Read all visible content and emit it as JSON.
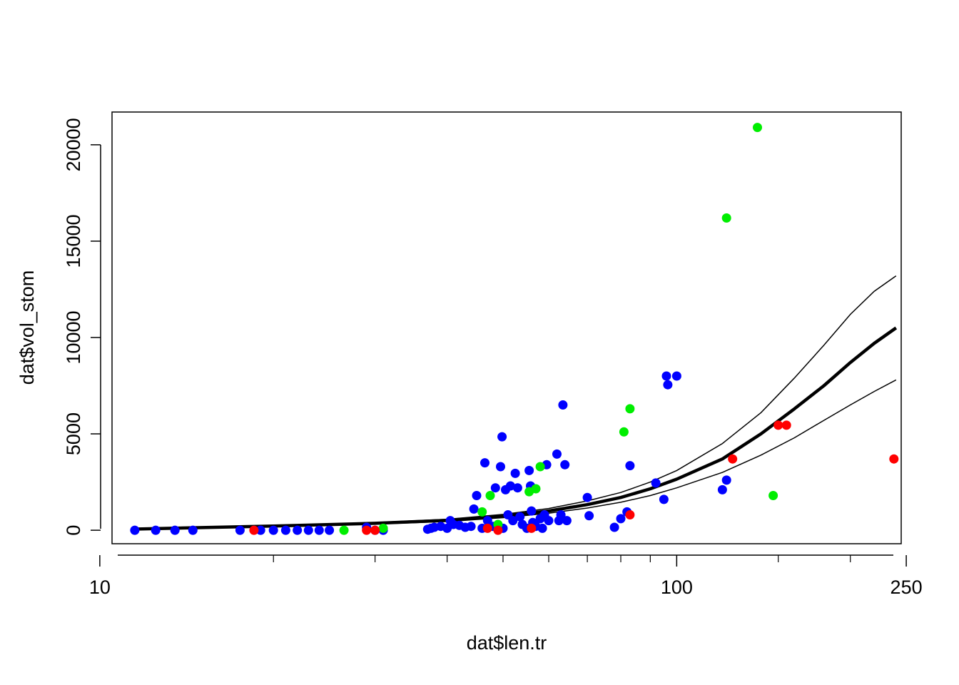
{
  "chart_data": {
    "type": "scatter",
    "title": "",
    "xlabel": "dat$len.tr",
    "ylabel": "dat$vol_stom",
    "x_scale": "log",
    "xlim": [
      10.5,
      245
    ],
    "ylim": [
      -700,
      21700
    ],
    "x_ticks": [
      10,
      100,
      250
    ],
    "x_tick_labels": [
      "10",
      "100",
      "250"
    ],
    "x_minor_ticks": [
      20,
      30,
      40,
      50,
      60,
      70,
      80,
      90,
      150,
      200
    ],
    "y_ticks": [
      0,
      5000,
      10000,
      15000,
      20000
    ],
    "y_tick_labels": [
      "0",
      "5000",
      "10000",
      "15000",
      "20000"
    ],
    "grid": false,
    "legend": "none",
    "colors": {
      "blue": "#0000ff",
      "green": "#00ee00",
      "red": "#ff0000",
      "fit": "#000000"
    },
    "series": [
      {
        "color": "blue",
        "points": [
          [
            11.5,
            0
          ],
          [
            12.5,
            0
          ],
          [
            13.5,
            0
          ],
          [
            14.5,
            0
          ],
          [
            17.5,
            0
          ],
          [
            19,
            0
          ],
          [
            20,
            0
          ],
          [
            21,
            0
          ],
          [
            22,
            0
          ],
          [
            23,
            0
          ],
          [
            24,
            0
          ],
          [
            25,
            0
          ],
          [
            29,
            150
          ],
          [
            30,
            0
          ],
          [
            31,
            0
          ],
          [
            37,
            50
          ],
          [
            37.5,
            100
          ],
          [
            38,
            150
          ],
          [
            39,
            200
          ],
          [
            40,
            100
          ],
          [
            40.5,
            500
          ],
          [
            41,
            300
          ],
          [
            42,
            250
          ],
          [
            43,
            150
          ],
          [
            44,
            200
          ],
          [
            44.5,
            1100
          ],
          [
            45,
            1800
          ],
          [
            46,
            100
          ],
          [
            46.5,
            3500
          ],
          [
            47,
            500
          ],
          [
            48,
            200
          ],
          [
            48.5,
            2200
          ],
          [
            49,
            100
          ],
          [
            49.5,
            3300
          ],
          [
            49.8,
            4850
          ],
          [
            50,
            100
          ],
          [
            50.5,
            2100
          ],
          [
            51,
            800
          ],
          [
            51.5,
            2300
          ],
          [
            52,
            500
          ],
          [
            52.5,
            2950
          ],
          [
            53,
            2200
          ],
          [
            53.5,
            700
          ],
          [
            54,
            300
          ],
          [
            55,
            100
          ],
          [
            55.5,
            3100
          ],
          [
            55.8,
            2300
          ],
          [
            56,
            1000
          ],
          [
            56.3,
            400
          ],
          [
            57,
            200
          ],
          [
            58,
            600
          ],
          [
            58.5,
            100
          ],
          [
            59,
            800
          ],
          [
            59.5,
            3400
          ],
          [
            60,
            500
          ],
          [
            62,
            3950
          ],
          [
            62.5,
            500
          ],
          [
            63,
            800
          ],
          [
            63.5,
            6500
          ],
          [
            64,
            3400
          ],
          [
            64.5,
            500
          ],
          [
            70,
            1700
          ],
          [
            70.5,
            750
          ],
          [
            78,
            150
          ],
          [
            80,
            600
          ],
          [
            82,
            950
          ],
          [
            83,
            3350
          ],
          [
            92,
            2450
          ],
          [
            95,
            1600
          ],
          [
            96,
            8000
          ],
          [
            96.5,
            7550
          ],
          [
            100,
            8000
          ],
          [
            120,
            2100
          ],
          [
            122,
            2600
          ]
        ]
      },
      {
        "color": "green",
        "points": [
          [
            26.5,
            0
          ],
          [
            31,
            100
          ],
          [
            46,
            950
          ],
          [
            47.5,
            1800
          ],
          [
            49,
            300
          ],
          [
            55.5,
            2000
          ],
          [
            57,
            2150
          ],
          [
            58,
            3300
          ],
          [
            81,
            5100
          ],
          [
            83,
            6300
          ],
          [
            122,
            16200
          ],
          [
            138,
            20900
          ],
          [
            147,
            1800
          ]
        ]
      },
      {
        "color": "red",
        "points": [
          [
            18.5,
            0
          ],
          [
            29,
            0
          ],
          [
            30,
            0
          ],
          [
            47,
            100
          ],
          [
            49,
            0
          ],
          [
            56,
            100
          ],
          [
            83,
            800
          ],
          [
            125,
            3700
          ],
          [
            150,
            5450
          ],
          [
            155,
            5450
          ],
          [
            238,
            3700
          ]
        ]
      }
    ],
    "fit": {
      "x": [
        11.5,
        20,
        30,
        40,
        50,
        60,
        70,
        80,
        90,
        100,
        120,
        140,
        160,
        180,
        200,
        220,
        240
      ],
      "y": [
        60,
        220,
        360,
        510,
        730,
        1000,
        1330,
        1700,
        2150,
        2650,
        3700,
        5000,
        6300,
        7500,
        8700,
        9700,
        10500
      ],
      "lower": [
        50,
        200,
        320,
        450,
        650,
        880,
        1150,
        1450,
        1800,
        2200,
        3000,
        3900,
        4800,
        5700,
        6500,
        7200,
        7800
      ],
      "upper": [
        70,
        240,
        400,
        570,
        820,
        1130,
        1520,
        1960,
        2500,
        3100,
        4500,
        6100,
        7900,
        9600,
        11200,
        12400,
        13200
      ]
    }
  }
}
